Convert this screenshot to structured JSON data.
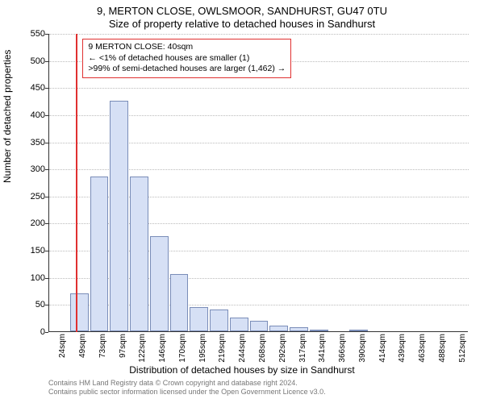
{
  "chart": {
    "type": "histogram",
    "title_line1": "9, MERTON CLOSE, OWLSMOOR, SANDHURST, GU47 0TU",
    "title_line2": "Size of property relative to detached houses in Sandhurst",
    "xaxis_title": "Distribution of detached houses by size in Sandhurst",
    "yaxis_title": "Number of detached properties",
    "background_color": "#ffffff",
    "grid_color": "#bbbbbb",
    "axis_color": "#333333",
    "bar_fill": "#d6e0f5",
    "bar_border": "#7a8db8",
    "marker_color": "#e03030",
    "ylim": [
      0,
      550
    ],
    "yticks": [
      0,
      50,
      100,
      150,
      200,
      250,
      300,
      350,
      400,
      450,
      500,
      550
    ],
    "bars": [
      {
        "label": "24sqm",
        "value": 0
      },
      {
        "label": "49sqm",
        "value": 70
      },
      {
        "label": "73sqm",
        "value": 285
      },
      {
        "label": "97sqm",
        "value": 425
      },
      {
        "label": "122sqm",
        "value": 285
      },
      {
        "label": "146sqm",
        "value": 175
      },
      {
        "label": "170sqm",
        "value": 105
      },
      {
        "label": "195sqm",
        "value": 45
      },
      {
        "label": "219sqm",
        "value": 40
      },
      {
        "label": "244sqm",
        "value": 25
      },
      {
        "label": "268sqm",
        "value": 20
      },
      {
        "label": "292sqm",
        "value": 10
      },
      {
        "label": "317sqm",
        "value": 8
      },
      {
        "label": "341sqm",
        "value": 3
      },
      {
        "label": "366sqm",
        "value": 0
      },
      {
        "label": "390sqm",
        "value": 2
      },
      {
        "label": "414sqm",
        "value": 0
      },
      {
        "label": "439sqm",
        "value": 0
      },
      {
        "label": "463sqm",
        "value": 0
      },
      {
        "label": "488sqm",
        "value": 0
      },
      {
        "label": "512sqm",
        "value": 0
      }
    ],
    "marker_bar_index": 1,
    "annotation": {
      "line1": "9 MERTON CLOSE: 40sqm",
      "line2": "← <1% of detached houses are smaller (1)",
      "line3": ">99% of semi-detached houses are larger (1,462) →"
    }
  },
  "footer": {
    "line1": "Contains HM Land Registry data © Crown copyright and database right 2024.",
    "line2": "Contains public sector information licensed under the Open Government Licence v3.0."
  }
}
